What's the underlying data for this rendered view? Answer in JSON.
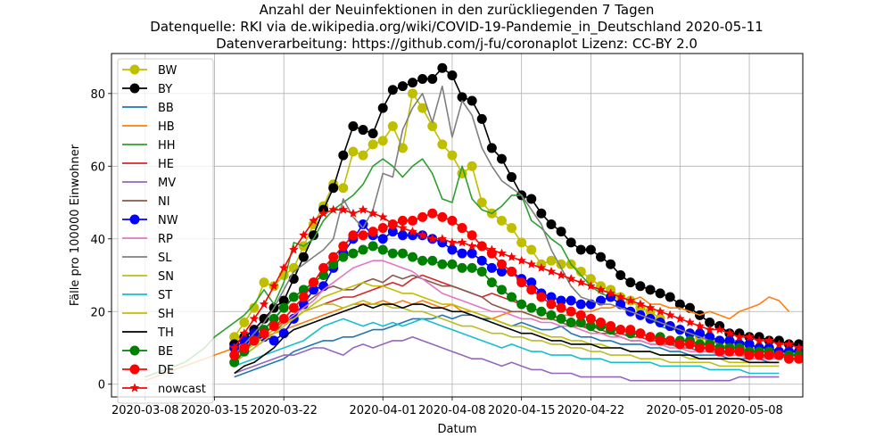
{
  "chart_data": {
    "type": "line",
    "title": [
      "Anzahl der Neuinfektionen in den zurückliegenden 7 Tagen",
      "Datenquelle: RKI via de.wikipedia.org/wiki/COVID-19-Pandemie_in_Deutschland 2020-05-11",
      "Datenverarbeitung: https://github.com/j-fu/coronaplot  Lizenz: CC-BY 2.0"
    ],
    "xlabel": "Datum",
    "ylabel": "Fälle pro 100000 Einwohner",
    "xlim": [
      -3.4,
      66.4
    ],
    "ylim": [
      -3.5,
      91
    ],
    "yticks": [
      0,
      20,
      40,
      60,
      80
    ],
    "xticks": [
      {
        "day": 0,
        "label": "2020-03-08"
      },
      {
        "day": 7,
        "label": "2020-03-15"
      },
      {
        "day": 14,
        "label": "2020-03-22"
      },
      {
        "day": 24,
        "label": "2020-04-01"
      },
      {
        "day": 31,
        "label": "2020-04-08"
      },
      {
        "day": 38,
        "label": "2020-04-15"
      },
      {
        "day": 45,
        "label": "2020-04-22"
      },
      {
        "day": 54,
        "label": "2020-05-01"
      },
      {
        "day": 61,
        "label": "2020-05-08"
      }
    ],
    "grid": true,
    "legend_position": "upper-left",
    "start_date": "2020-03-08",
    "series": [
      {
        "name": "BW",
        "color": "#bfbf00",
        "marker": "circle",
        "x_start": 9,
        "values": [
          13,
          17,
          21,
          28,
          27,
          30,
          32,
          38,
          44,
          49,
          55,
          54,
          64,
          63,
          66,
          67,
          71,
          65,
          80,
          76,
          71,
          66,
          63,
          58,
          60,
          50,
          47,
          45,
          43,
          39,
          37,
          33,
          34,
          33,
          33,
          31,
          29,
          27,
          26,
          24,
          23,
          21,
          20,
          18,
          16,
          15,
          14,
          13,
          12,
          12,
          11,
          10,
          10,
          9,
          9,
          8
        ]
      },
      {
        "name": "BY",
        "color": "#000000",
        "marker": "circle",
        "x_start": 9,
        "values": [
          11,
          13,
          15,
          18,
          21,
          23,
          29,
          35,
          41,
          48,
          54,
          63,
          71,
          70,
          69,
          76,
          81,
          82,
          83,
          84,
          84,
          87,
          85,
          79,
          78,
          73,
          65,
          62,
          57,
          52,
          51,
          47,
          44,
          42,
          39,
          37,
          37,
          35,
          33,
          30,
          28,
          27,
          26,
          25,
          24,
          22,
          21,
          19,
          17,
          16,
          14,
          14,
          13,
          13,
          12,
          12,
          11,
          11,
          11,
          10
        ]
      },
      {
        "name": "BB",
        "color": "#1f77b4",
        "marker": "none",
        "x_start": 9,
        "values": [
          2,
          3,
          4,
          5,
          6,
          7,
          9,
          10,
          11,
          12,
          12,
          13,
          13,
          14,
          15,
          15,
          16,
          17,
          18,
          18,
          18,
          19,
          18,
          19,
          19,
          18,
          18,
          17,
          16,
          17,
          16,
          15,
          15,
          16,
          14,
          13,
          13,
          12,
          12,
          11,
          11,
          11,
          10,
          10,
          9,
          9,
          8,
          8,
          8,
          8,
          7,
          7,
          7,
          7,
          6,
          6
        ]
      },
      {
        "name": "HB",
        "color": "#ff7f0e",
        "marker": "none",
        "x_start": 0,
        "values": [
          1,
          2,
          3,
          4,
          5,
          6,
          7,
          8,
          9,
          10,
          11,
          12,
          13,
          14,
          15,
          16,
          17,
          18,
          19,
          20,
          21,
          22,
          22,
          22,
          23,
          22,
          23,
          22,
          23,
          22,
          21,
          22,
          20,
          20,
          19,
          18,
          19,
          20,
          20,
          19,
          18,
          18,
          19,
          19,
          20,
          20,
          21,
          21,
          22,
          23,
          24,
          22,
          22,
          21,
          21,
          20,
          19,
          20,
          19,
          18,
          20,
          21,
          22,
          24,
          23,
          20
        ]
      },
      {
        "name": "HH",
        "color": "#2ca02c",
        "marker": "none",
        "x_start": 0,
        "values": [
          2,
          3,
          4,
          5,
          6,
          8,
          10,
          13,
          15,
          17,
          19,
          22,
          26,
          22,
          28,
          39,
          38,
          40,
          45,
          48,
          50,
          52,
          55,
          60,
          62,
          60,
          57,
          60,
          62,
          58,
          51,
          50,
          60,
          51,
          48,
          47,
          49,
          52,
          52,
          45,
          43,
          40,
          38,
          33,
          30,
          27,
          25,
          24,
          22,
          20,
          19,
          18,
          16,
          15,
          15,
          14,
          14,
          13,
          12,
          12,
          12,
          11,
          10,
          10,
          9,
          9
        ]
      },
      {
        "name": "HE",
        "color": "#d62728",
        "marker": "none",
        "x_start": 9,
        "values": [
          8,
          10,
          12,
          14,
          16,
          17,
          18,
          20,
          21,
          22,
          23,
          24,
          24,
          25,
          26,
          27,
          28,
          27,
          29,
          30,
          29,
          28,
          27,
          26,
          25,
          24,
          25,
          24,
          23,
          22,
          21,
          20,
          19,
          18,
          17,
          16,
          16,
          15,
          14,
          14,
          13,
          13,
          12,
          12,
          11,
          11,
          11,
          10,
          10,
          9,
          9,
          9,
          8,
          8,
          8,
          7
        ]
      },
      {
        "name": "MV",
        "color": "#9467bd",
        "marker": "none",
        "x_start": 9,
        "values": [
          3,
          4,
          5,
          6,
          7,
          8,
          8,
          9,
          10,
          10,
          9,
          8,
          10,
          11,
          10,
          11,
          12,
          12,
          13,
          12,
          11,
          10,
          9,
          8,
          7,
          7,
          6,
          5,
          6,
          5,
          4,
          4,
          3,
          3,
          3,
          2,
          2,
          2,
          2,
          2,
          1,
          1,
          1,
          1,
          1,
          1,
          1,
          1,
          1,
          1,
          1,
          2,
          2,
          2,
          2,
          2
        ]
      },
      {
        "name": "NI",
        "color": "#8c564b",
        "marker": "none",
        "x_start": 9,
        "values": [
          6,
          8,
          10,
          12,
          14,
          17,
          19,
          22,
          24,
          26,
          27,
          26,
          26,
          28,
          29,
          28,
          30,
          29,
          30,
          29,
          28,
          27,
          27,
          26,
          25,
          24,
          22,
          21,
          20,
          20,
          19,
          18,
          18,
          17,
          16,
          16,
          15,
          14,
          14,
          13,
          12,
          12,
          11,
          11,
          11,
          10,
          10,
          9,
          9,
          9,
          8,
          8,
          8,
          8,
          7,
          7
        ]
      },
      {
        "name": "NW",
        "color": "#0000ff",
        "marker": "circle",
        "x_start": 9,
        "values": [
          10,
          12,
          14,
          13,
          12,
          14,
          18,
          22,
          26,
          27,
          32,
          36,
          40,
          44,
          41,
          40,
          42,
          41,
          41,
          41,
          40,
          39,
          37,
          36,
          36,
          34,
          32,
          31,
          31,
          29,
          28,
          25,
          24,
          23,
          23,
          22,
          22,
          23,
          24,
          22,
          20,
          19,
          18,
          17,
          16,
          15,
          14,
          14,
          13,
          12,
          12,
          11,
          11,
          10,
          10,
          9,
          9,
          9,
          9,
          8
        ]
      },
      {
        "name": "RP",
        "color": "#e377c2",
        "marker": "none",
        "x_start": 9,
        "values": [
          7,
          9,
          11,
          13,
          15,
          17,
          19,
          21,
          23,
          26,
          28,
          30,
          32,
          33,
          34,
          34,
          33,
          32,
          31,
          29,
          27,
          25,
          24,
          23,
          22,
          21,
          20,
          20,
          19,
          18,
          18,
          17,
          17,
          16,
          16,
          15,
          14,
          14,
          13,
          13,
          12,
          12,
          11,
          11,
          10,
          10,
          9,
          9,
          9,
          8,
          8,
          8,
          7,
          7,
          7,
          7
        ]
      },
      {
        "name": "SL",
        "color": "#7f7f7f",
        "marker": "none",
        "x_start": 9,
        "values": [
          8,
          11,
          14,
          17,
          21,
          26,
          31,
          33,
          35,
          37,
          40,
          51,
          46,
          43,
          48,
          58,
          57,
          70,
          76,
          80,
          72,
          82,
          68,
          78,
          74,
          65,
          60,
          56,
          54,
          52,
          48,
          44,
          37,
          32,
          27,
          24,
          23,
          22,
          22,
          21,
          20,
          19,
          18,
          17,
          16,
          15,
          14,
          13,
          12,
          11,
          10,
          9,
          9,
          8,
          8,
          7
        ]
      },
      {
        "name": "SN",
        "color": "#bcbd22",
        "marker": "none",
        "x_start": 9,
        "values": [
          6,
          8,
          10,
          12,
          14,
          16,
          18,
          20,
          21,
          22,
          22,
          21,
          22,
          23,
          22,
          22,
          21,
          21,
          20,
          20,
          19,
          18,
          17,
          16,
          16,
          15,
          14,
          14,
          13,
          13,
          12,
          12,
          11,
          11,
          10,
          10,
          9,
          9,
          8,
          8,
          8,
          7,
          7,
          7,
          6,
          6,
          6,
          6,
          6,
          5,
          5,
          5,
          5,
          5,
          5,
          5
        ]
      },
      {
        "name": "ST",
        "color": "#17becf",
        "marker": "none",
        "x_start": 9,
        "values": [
          5,
          6,
          7,
          8,
          9,
          10,
          11,
          12,
          14,
          16,
          17,
          18,
          17,
          16,
          17,
          16,
          17,
          16,
          17,
          18,
          17,
          16,
          15,
          14,
          13,
          12,
          11,
          10,
          11,
          10,
          9,
          9,
          8,
          8,
          8,
          7,
          7,
          7,
          6,
          6,
          6,
          6,
          6,
          5,
          5,
          5,
          5,
          5,
          4,
          4,
          4,
          4,
          3,
          3,
          3,
          3
        ]
      },
      {
        "name": "SH",
        "color": "#bfbf00",
        "marker": "none",
        "x_start": 9,
        "values": [
          7,
          9,
          11,
          13,
          15,
          17,
          18,
          20,
          22,
          24,
          25,
          26,
          27,
          28,
          27,
          27,
          26,
          25,
          25,
          24,
          23,
          22,
          22,
          21,
          20,
          19,
          18,
          17,
          16,
          16,
          15,
          14,
          13,
          13,
          12,
          12,
          11,
          11,
          10,
          10,
          9,
          9,
          9,
          8,
          8,
          8,
          7,
          7,
          7,
          7,
          6,
          6,
          6,
          6,
          6,
          6
        ]
      },
      {
        "name": "TH",
        "color": "#000000",
        "marker": "none",
        "x_start": 9,
        "values": [
          3,
          5,
          6,
          8,
          10,
          13,
          15,
          16,
          17,
          18,
          19,
          20,
          21,
          22,
          21,
          22,
          22,
          21,
          22,
          22,
          21,
          21,
          20,
          20,
          19,
          18,
          17,
          16,
          15,
          14,
          14,
          13,
          12,
          12,
          11,
          11,
          11,
          10,
          10,
          10,
          9,
          9,
          9,
          8,
          8,
          8,
          8,
          7,
          7,
          7,
          7,
          7,
          6,
          6,
          6,
          6
        ]
      },
      {
        "name": "BE",
        "color": "#008000",
        "marker": "circle",
        "x_start": 9,
        "values": [
          6,
          9,
          12,
          15,
          18,
          21,
          24,
          26,
          28,
          30,
          33,
          35,
          36,
          37,
          38,
          37,
          36,
          36,
          35,
          34,
          34,
          33,
          33,
          32,
          32,
          31,
          28,
          26,
          24,
          22,
          21,
          20,
          19,
          18,
          17,
          17,
          16,
          16,
          15,
          15,
          14,
          14,
          13,
          13,
          12,
          12,
          12,
          11,
          11,
          10,
          10,
          10,
          9,
          9,
          9,
          8,
          8,
          8,
          8,
          7
        ]
      },
      {
        "name": "DE",
        "color": "#ff0000",
        "marker": "circle",
        "x_start": 9,
        "values": [
          8,
          10,
          12,
          14,
          16,
          18,
          21,
          24,
          28,
          32,
          35,
          38,
          41,
          41,
          42,
          43,
          44,
          45,
          45,
          46,
          47,
          46,
          45,
          43,
          41,
          38,
          36,
          33,
          31,
          28,
          26,
          24,
          22,
          21,
          20,
          19,
          18,
          17,
          16,
          15,
          15,
          14,
          13,
          12,
          12,
          11,
          11,
          10,
          10,
          9,
          9,
          9,
          8,
          8,
          8,
          8,
          7,
          7,
          7,
          7
        ]
      },
      {
        "name": "nowcast",
        "color": "#ff0000",
        "marker": "star",
        "x_start": 9,
        "values": [
          10,
          14,
          18,
          22,
          27,
          32,
          37,
          41,
          45,
          47,
          48,
          48,
          47,
          48,
          47,
          46,
          44,
          43,
          42,
          41,
          40,
          40,
          39,
          39,
          38,
          38,
          37,
          36,
          35,
          34,
          33,
          32,
          31,
          30,
          29,
          28,
          27,
          26,
          25,
          24,
          23,
          22,
          21,
          20,
          19,
          18,
          17,
          16,
          15,
          15,
          14,
          13,
          13,
          12,
          12,
          11,
          11,
          10,
          10,
          10
        ]
      }
    ]
  }
}
